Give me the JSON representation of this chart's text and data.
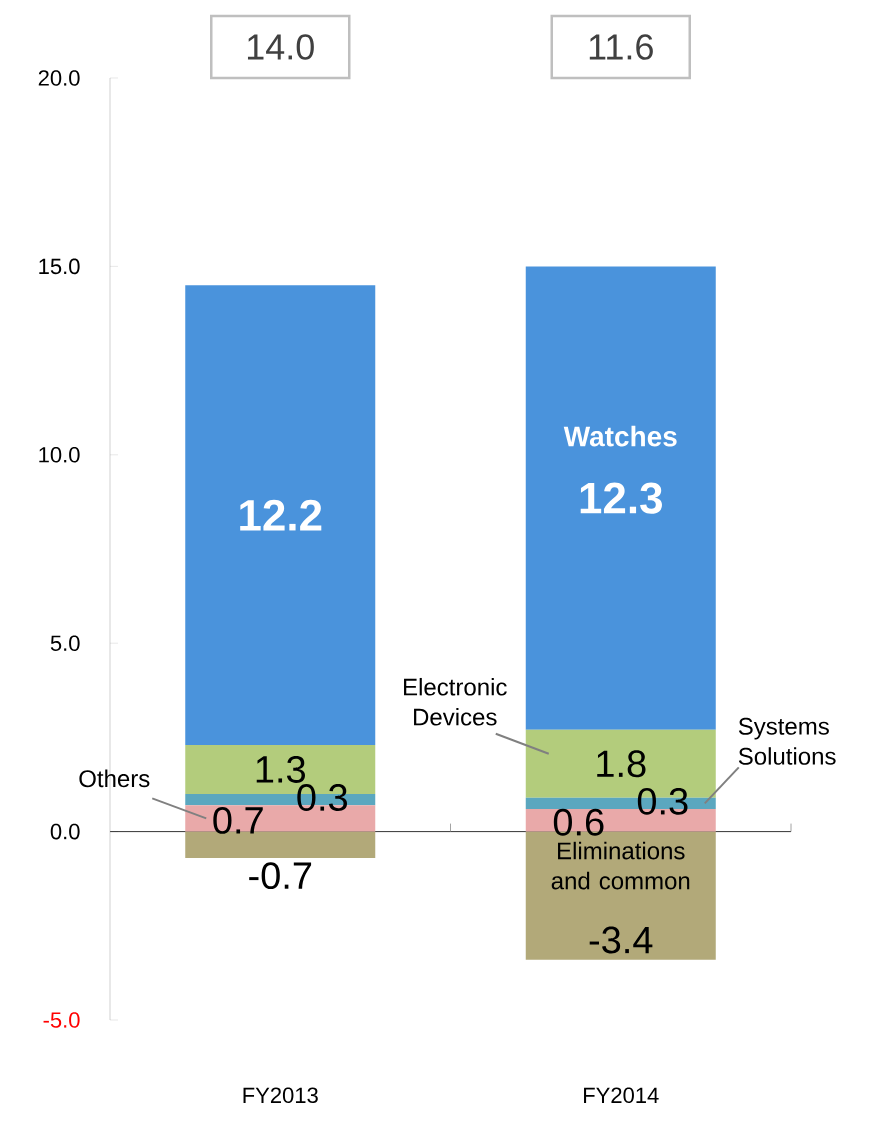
{
  "chart_data": {
    "type": "bar",
    "stacked": true,
    "categories": [
      "FY2013",
      "FY2014"
    ],
    "series": [
      {
        "name": "Others",
        "color": "#e9a9a9",
        "values": [
          0.7,
          0.6
        ]
      },
      {
        "name": "Systems Solutions",
        "color": "#5ba7bf",
        "values": [
          0.3,
          0.3
        ]
      },
      {
        "name": "Electronic Devices",
        "color": "#b3cc7c",
        "values": [
          1.3,
          1.8
        ]
      },
      {
        "name": "Watches",
        "color": "#4a93dc",
        "values": [
          12.2,
          12.3
        ]
      },
      {
        "name": "Eliminations and common",
        "color": "#b2a979",
        "values": [
          -0.7,
          -3.4
        ]
      }
    ],
    "ylim": [
      -5,
      20
    ],
    "yticks": [
      {
        "value": -5,
        "label": "-5.0"
      },
      {
        "value": 0,
        "label": "0.0"
      },
      {
        "value": 5,
        "label": "5.0"
      },
      {
        "value": 10,
        "label": "10.0"
      },
      {
        "value": 15,
        "label": "15.0"
      },
      {
        "value": 20,
        "label": "20.0"
      }
    ],
    "data_labels": true,
    "annotations": [
      "14.0",
      "11.6"
    ]
  }
}
